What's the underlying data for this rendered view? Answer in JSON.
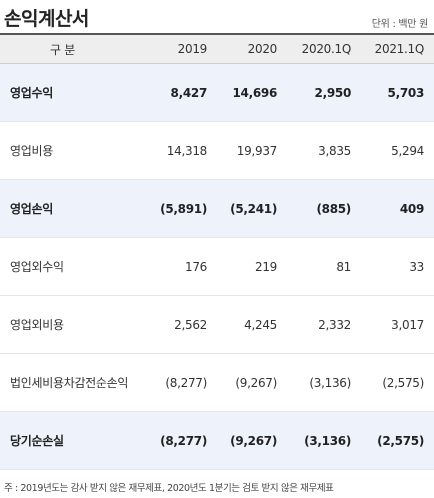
{
  "title": "손익계산서",
  "unit": "단위 : 백만 원",
  "header": {
    "label": "구  분",
    "columns": [
      "2019",
      "2020",
      "2020.1Q",
      "2021.1Q"
    ]
  },
  "rows": [
    {
      "label": "영업수익",
      "values": [
        "8,427",
        "14,696",
        "2,950",
        "5,703"
      ]
    },
    {
      "label": "영업비용",
      "values": [
        "14,318",
        "19,937",
        "3,835",
        "5,294"
      ]
    },
    {
      "label": "영업손익",
      "values": [
        "(5,891)",
        "(5,241)",
        "(885)",
        "409"
      ]
    },
    {
      "label": "영업외수익",
      "values": [
        "176",
        "219",
        "81",
        "33"
      ]
    },
    {
      "label": "영업외비용",
      "values": [
        "2,562",
        "4,245",
        "2,332",
        "3,017"
      ]
    },
    {
      "label": "법인세비용차감전순손익",
      "values": [
        "(8,277)",
        "(9,267)",
        "(3,136)",
        "(2,575)"
      ]
    },
    {
      "label": "당기순손실",
      "values": [
        "(8,277)",
        "(9,267)",
        "(3,136)",
        "(2,575)"
      ]
    }
  ],
  "footnote": "주 : 2019년도는 감사 받지 않은 재무제표, 2020년도 1분기는 검토 받지 않은 재무제표"
}
